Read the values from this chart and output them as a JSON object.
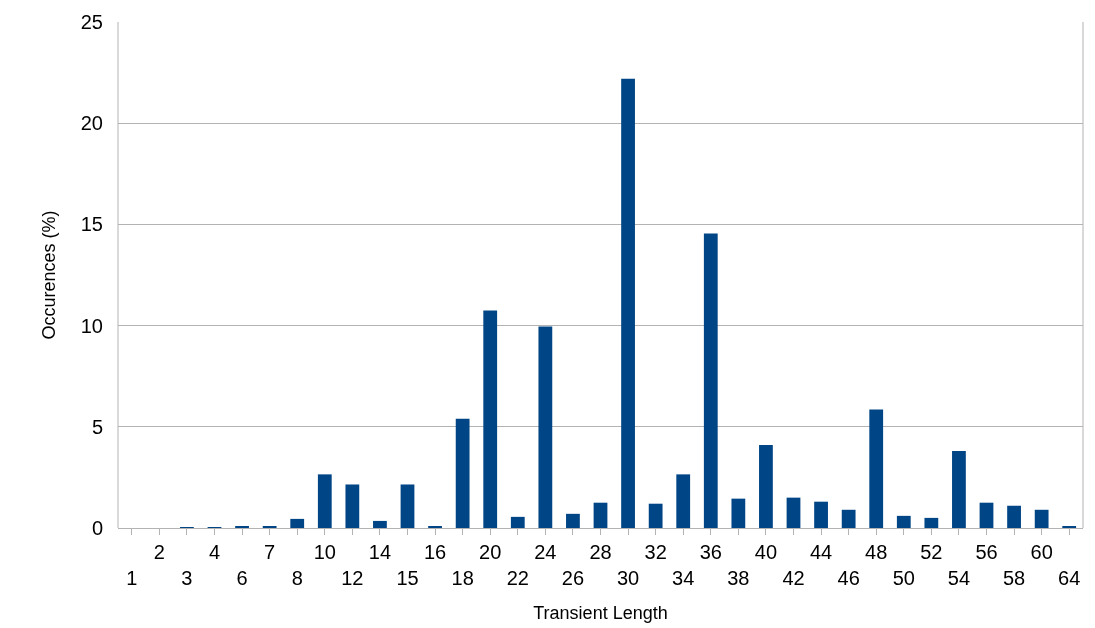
{
  "chart_data": {
    "type": "bar",
    "xlabel": "Transient Length",
    "ylabel": "Occurences (%)",
    "categories": [
      "1",
      "2",
      "3",
      "4",
      "6",
      "7",
      "8",
      "10",
      "12",
      "14",
      "15",
      "16",
      "18",
      "20",
      "22",
      "24",
      "26",
      "28",
      "30",
      "32",
      "34",
      "36",
      "38",
      "40",
      "42",
      "44",
      "46",
      "48",
      "50",
      "52",
      "54",
      "56",
      "58",
      "60",
      "64"
    ],
    "values": [
      0,
      0,
      0.02,
      0.02,
      0.05,
      0.05,
      0.45,
      2.65,
      2.15,
      0.35,
      2.15,
      0.1,
      5.4,
      10.75,
      0.55,
      9.95,
      0.7,
      1.25,
      22.2,
      1.2,
      2.65,
      14.55,
      1.45,
      4.1,
      1.5,
      1.3,
      0.9,
      5.85,
      0.6,
      0.5,
      3.8,
      1.25,
      1.1,
      0.9,
      0.1
    ],
    "color": "#004586",
    "ylim": [
      0,
      25
    ],
    "yticks": [
      0,
      5,
      10,
      15,
      20,
      25
    ],
    "grid": "y"
  }
}
